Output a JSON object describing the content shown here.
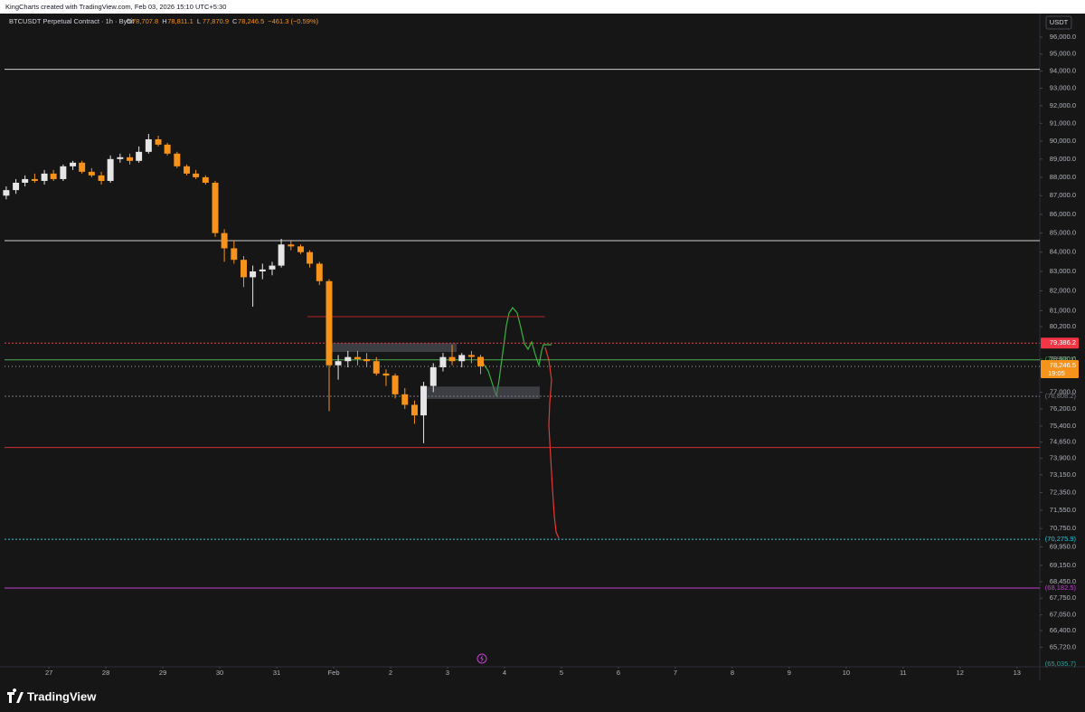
{
  "header": {
    "attribution": "KingCharts created with TradingView.com, Feb 03, 2026 15:10 UTC+5:30"
  },
  "footer": {
    "brand": "TradingView"
  },
  "chart_data": {
    "type": "candlestick",
    "symbol": "BTCUSDT Perpetual Contract · 1h · Bybit",
    "ohlc_legend": [
      {
        "key": "O",
        "text": "78,707.8"
      },
      {
        "key": "H",
        "text": "78,811.1"
      },
      {
        "key": "L",
        "text": "77,870.9"
      },
      {
        "key": "C",
        "text": "78,246.5"
      }
    ],
    "change": "−461.3 (−0.59%)",
    "currency": "USDT",
    "log_scale": true,
    "up_color": "#e6e6e6",
    "down_color": "#f7931a",
    "x": [
      26.25,
      26.42,
      26.58,
      26.75,
      26.92,
      27.08,
      27.25,
      27.42,
      27.58,
      27.75,
      27.92,
      28.08,
      28.25,
      28.42,
      28.58,
      28.75,
      28.92,
      29.08,
      29.25,
      29.42,
      29.58,
      29.75,
      29.92,
      30.08,
      30.25,
      30.42,
      30.58,
      30.75,
      30.92,
      31.08,
      31.25,
      31.42,
      31.58,
      31.75,
      31.92,
      32.08,
      32.25,
      32.42,
      32.58,
      32.75,
      32.92,
      33.08,
      33.25,
      33.42,
      33.58,
      33.75,
      33.92,
      34.08,
      34.25,
      34.42,
      34.58
    ],
    "open": [
      87000,
      87300,
      87700,
      87900,
      87800,
      88200,
      87900,
      88600,
      88800,
      88300,
      88100,
      87800,
      89000,
      89100,
      88900,
      89400,
      90100,
      89800,
      89300,
      88600,
      88200,
      88000,
      87700,
      85000,
      84200,
      83600,
      82700,
      83000,
      83100,
      83300,
      84400,
      84300,
      84000,
      83400,
      82500,
      78300,
      78500,
      78700,
      78600,
      78500,
      77900,
      77800,
      76900,
      76400,
      75900,
      77300,
      78200,
      78700,
      78500,
      78800,
      78707.8
    ],
    "high": [
      87500,
      87900,
      88100,
      88200,
      88400,
      88400,
      88700,
      88900,
      88900,
      88500,
      88300,
      89200,
      89300,
      89300,
      89700,
      90400,
      90300,
      89900,
      89400,
      88700,
      88400,
      88100,
      87800,
      85200,
      84600,
      83800,
      83300,
      83400,
      83500,
      84700,
      84600,
      84400,
      84100,
      83500,
      82600,
      78800,
      79000,
      79000,
      78900,
      78700,
      78100,
      77900,
      77200,
      76600,
      77500,
      78400,
      78900,
      79300,
      78900,
      79000,
      78811.1
    ],
    "low": [
      86800,
      87100,
      87500,
      87700,
      87600,
      87800,
      87800,
      88400,
      88200,
      88000,
      87600,
      87700,
      88800,
      88700,
      88800,
      89300,
      89700,
      89200,
      88500,
      88100,
      87900,
      87600,
      84800,
      83500,
      83400,
      82200,
      81200,
      82600,
      82800,
      83200,
      84100,
      83900,
      83200,
      82300,
      76100,
      77600,
      78200,
      78300,
      78200,
      77800,
      77300,
      76700,
      76200,
      75500,
      74600,
      77000,
      78000,
      78300,
      78200,
      78400,
      77870.9
    ],
    "close": [
      87300,
      87700,
      87900,
      87800,
      88200,
      87900,
      88600,
      88800,
      88300,
      88100,
      87800,
      89000,
      89100,
      88900,
      89400,
      90100,
      89800,
      89300,
      88600,
      88200,
      88000,
      87700,
      85000,
      84200,
      83600,
      82700,
      83000,
      83100,
      83300,
      84400,
      84300,
      84000,
      83400,
      82500,
      78300,
      78500,
      78700,
      78600,
      78500,
      77900,
      77800,
      76900,
      76400,
      75900,
      77300,
      78200,
      78700,
      78500,
      78800,
      78707.8,
      78246.5
    ],
    "xlim": [
      26.22,
      44.4
    ],
    "xticks": [
      {
        "value": 27,
        "label": "27"
      },
      {
        "value": 28,
        "label": "28"
      },
      {
        "value": 29,
        "label": "29"
      },
      {
        "value": 30,
        "label": "30"
      },
      {
        "value": 31,
        "label": "31"
      },
      {
        "value": 32,
        "label": "Feb"
      },
      {
        "value": 33,
        "label": "2"
      },
      {
        "value": 34,
        "label": "3"
      },
      {
        "value": 35,
        "label": "4"
      },
      {
        "value": 36,
        "label": "5"
      },
      {
        "value": 37,
        "label": "6"
      },
      {
        "value": 38,
        "label": "7"
      },
      {
        "value": 39,
        "label": "8"
      },
      {
        "value": 40,
        "label": "9"
      },
      {
        "value": 41,
        "label": "10"
      },
      {
        "value": 42,
        "label": "11"
      },
      {
        "value": 43,
        "label": "12"
      },
      {
        "value": 44,
        "label": "13"
      }
    ],
    "ylim": [
      65000,
      96600
    ],
    "yticks": [
      {
        "value": 96000,
        "label": "96,000.0"
      },
      {
        "value": 95000,
        "label": "95,000.0"
      },
      {
        "value": 94000,
        "label": "94,000.0"
      },
      {
        "value": 93000,
        "label": "93,000.0"
      },
      {
        "value": 92000,
        "label": "92,000.0"
      },
      {
        "value": 91000,
        "label": "91,000.0"
      },
      {
        "value": 90000,
        "label": "90,000.0"
      },
      {
        "value": 89000,
        "label": "89,000.0"
      },
      {
        "value": 88000,
        "label": "88,000.0"
      },
      {
        "value": 87000,
        "label": "87,000.0"
      },
      {
        "value": 86000,
        "label": "86,000.0"
      },
      {
        "value": 85000,
        "label": "85,000.0"
      },
      {
        "value": 84000,
        "label": "84,000.0"
      },
      {
        "value": 83000,
        "label": "83,000.0"
      },
      {
        "value": 82000,
        "label": "82,000.0"
      },
      {
        "value": 81000,
        "label": "81,000.0"
      },
      {
        "value": 80200,
        "label": "80,200.0"
      },
      {
        "value": 78600,
        "label": "78,600.0"
      },
      {
        "value": 77000,
        "label": "77,000.0"
      },
      {
        "value": 76200,
        "label": "76,200.0"
      },
      {
        "value": 75400,
        "label": "75,400.0"
      },
      {
        "value": 74650,
        "label": "74,650.0"
      },
      {
        "value": 73900,
        "label": "73,900.0"
      },
      {
        "value": 73150,
        "label": "73,150.0"
      },
      {
        "value": 72350,
        "label": "72,350.0"
      },
      {
        "value": 71550,
        "label": "71,550.0"
      },
      {
        "value": 70750,
        "label": "70,750.0"
      },
      {
        "value": 69950,
        "label": "69,950.0"
      },
      {
        "value": 69150,
        "label": "69,150.0"
      },
      {
        "value": 68450,
        "label": "68,450.0"
      },
      {
        "value": 67750,
        "label": "67,750.0"
      },
      {
        "value": 67050,
        "label": "67,050.0"
      },
      {
        "value": 66400,
        "label": "66,400.0"
      },
      {
        "value": 65720,
        "label": "65,720.0"
      }
    ],
    "horizontal_lines": [
      {
        "value": 94100,
        "color": "#d0d0d0"
      },
      {
        "value": 84600,
        "color": "#d0d0d0"
      },
      {
        "value": 74400,
        "color": "#d32f2f"
      }
    ],
    "segments": [
      {
        "value": 80700,
        "x": [
          31.54,
          35.71
        ],
        "color": "#b22222"
      }
    ],
    "zones": [
      {
        "y": [
          78950,
          79386.2
        ],
        "x": [
          31.94,
          34.16
        ]
      },
      {
        "y": [
          76680,
          77270
        ],
        "x": [
          33.6,
          35.62
        ]
      }
    ],
    "levels": [
      {
        "value": 79386.2,
        "label": "79,386.2",
        "color": "#f23645",
        "dash": "2,2",
        "boxed": true
      },
      {
        "value": 78566.1,
        "label": "(78,566.1)",
        "color": "#4caf50",
        "dash": "",
        "boxed": false
      },
      {
        "value": 76808.2,
        "label": "(76,808.2)",
        "color": "#787b86",
        "dash": "2,2",
        "boxed": false
      },
      {
        "value": 70275.9,
        "label": "(70,275.9)",
        "color": "#26c6da",
        "dash": "2,2",
        "boxed": false
      },
      {
        "value": 68182.5,
        "label": "(68,182.5)",
        "color": "#c040d0",
        "dash": "",
        "boxed": false
      },
      {
        "value": 65035.7,
        "label": "(65,035.7)",
        "color": "#26a69a",
        "dash": "none",
        "boxed": false
      }
    ],
    "last_price": {
      "value": 78246.5,
      "label": "78,246.5",
      "countdown": "19:05",
      "color": "#f7931a"
    }
  }
}
